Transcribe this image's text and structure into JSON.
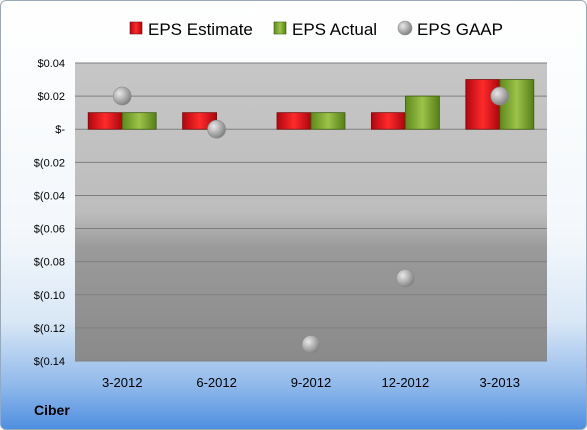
{
  "company_label": "Ciber",
  "chart_data": {
    "type": "bar",
    "categories": [
      "3-2012",
      "6-2012",
      "9-2012",
      "12-2012",
      "3-2013"
    ],
    "series": [
      {
        "name": "EPS Estimate",
        "kind": "bar",
        "color": "#e0121b",
        "values": [
          0.01,
          0.01,
          0.01,
          0.01,
          0.03
        ]
      },
      {
        "name": "EPS Actual",
        "kind": "bar",
        "color": "#7fa82c",
        "values": [
          0.01,
          null,
          0.01,
          0.02,
          0.03
        ]
      },
      {
        "name": "EPS GAAP",
        "kind": "marker",
        "color": "#a6a6a6",
        "values": [
          0.02,
          0.0,
          -0.13,
          -0.09,
          0.02
        ]
      }
    ],
    "ylim": [
      -0.14,
      0.04
    ],
    "yticks": [
      0.04,
      0.02,
      0,
      -0.02,
      -0.04,
      -0.06,
      -0.08,
      -0.1,
      -0.12,
      -0.14
    ],
    "ytick_labels": [
      "$0.04",
      "$0.02",
      "$-",
      "$(0.02",
      "$(0.04",
      "$(0.06",
      "$(0.08",
      "$(0.10",
      "$(0.12",
      "$(0.14"
    ],
    "title": "",
    "xlabel": "",
    "ylabel": "",
    "grid": true,
    "legend": "top"
  }
}
